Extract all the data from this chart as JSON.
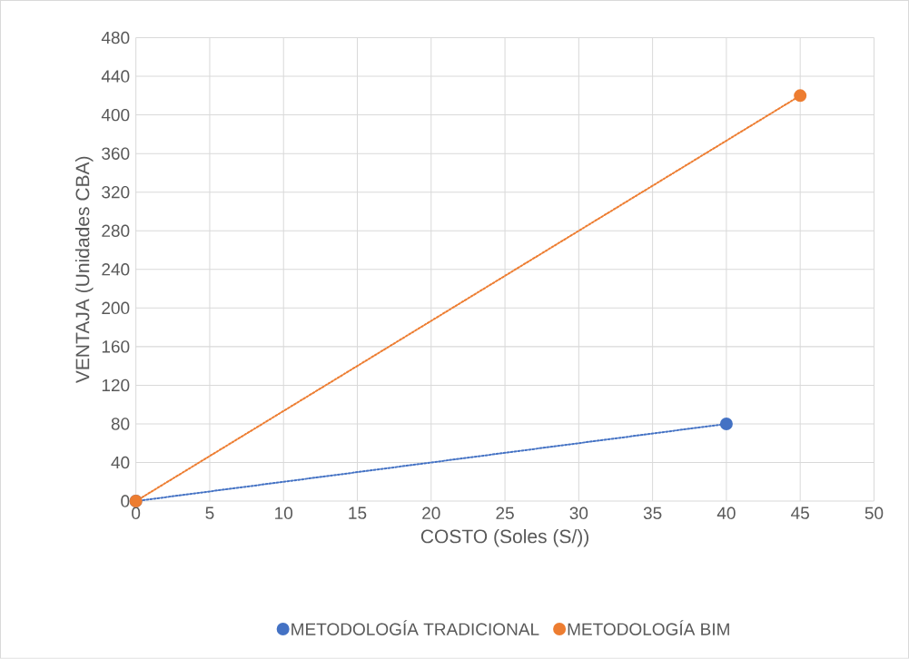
{
  "chart_data": {
    "type": "line",
    "xlabel": "COSTO (Soles (S/))",
    "ylabel": "VENTAJA (Unidades CBA)",
    "xlim": [
      0,
      50
    ],
    "xticks": [
      0,
      5,
      10,
      15,
      20,
      25,
      30,
      35,
      40,
      45,
      50
    ],
    "ylim": [
      0,
      480
    ],
    "yticks": [
      0,
      40,
      80,
      120,
      160,
      200,
      240,
      280,
      320,
      360,
      400,
      440,
      480
    ],
    "grid": true,
    "legend": "bottom",
    "marker": "circle",
    "line_style": "dotted",
    "series": [
      {
        "name": "METODOLOGÍA TRADICIONAL",
        "color": "#4472c4",
        "x": [
          0,
          40
        ],
        "values": [
          0,
          80
        ]
      },
      {
        "name": "METODOLOGÍA BIM",
        "color": "#ed7d31",
        "x": [
          0,
          45
        ],
        "values": [
          0,
          420
        ]
      }
    ]
  }
}
